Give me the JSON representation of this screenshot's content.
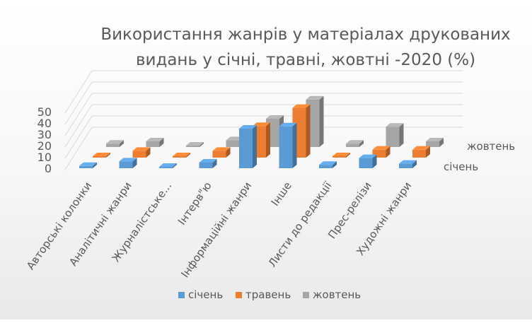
{
  "chart_data": {
    "type": "bar",
    "title_line1": "Використання жанрів у матеріалах друкованих",
    "title_line2": "видань у січні, травні, жовтні -2020 (%)",
    "categories": [
      "Авторські колонки",
      "Аналітичні жанри",
      "Журналістське...",
      "Інтерв\"ю",
      "Інформаційні жанри",
      "Інше",
      "Листи до редакції",
      "Прес-релізи",
      "Художні жанри"
    ],
    "series": [
      {
        "name": "січень",
        "color": "#5b9bd5",
        "values": [
          2,
          6,
          1,
          5,
          35,
          37,
          3,
          9,
          4
        ]
      },
      {
        "name": "травень",
        "color": "#ed7d31",
        "values": [
          0,
          6,
          0,
          6,
          28,
          44,
          0,
          7,
          7
        ]
      },
      {
        "name": "жовтень",
        "color": "#a5a5a5",
        "values": [
          3,
          5,
          1,
          6,
          25,
          42,
          3,
          18,
          5
        ]
      }
    ],
    "depth_labels": [
      "жовтень",
      "січень"
    ],
    "y_ticks": [
      0,
      10,
      20,
      30,
      40,
      50
    ],
    "ylim": [
      0,
      50
    ],
    "grid": true,
    "legend_position": "bottom"
  }
}
